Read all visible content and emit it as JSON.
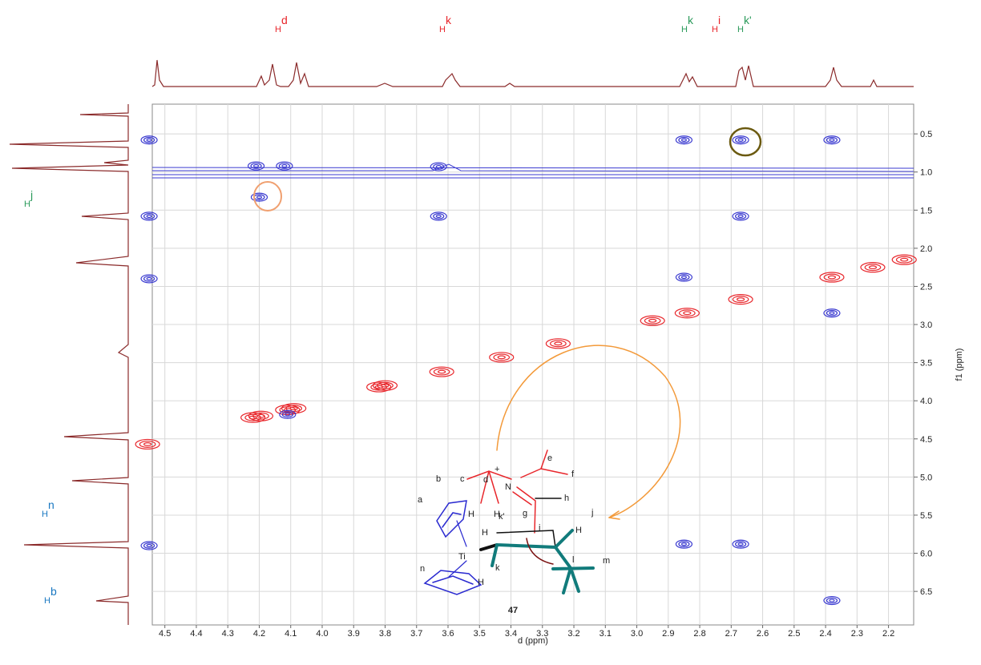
{
  "chart_data": {
    "type": "contour",
    "x_label": "d (ppm)",
    "y_label": "f1 (ppm)",
    "xlim": [
      4.54,
      2.12
    ],
    "ylim": [
      0.11,
      6.94
    ],
    "xticks": [
      4.5,
      4.4,
      4.3,
      4.2,
      4.1,
      {
        "value": 4,
        "label": "4.0"
      },
      3.9,
      3.8,
      3.7,
      3.6,
      3.5,
      3.4,
      3.3,
      3.2,
      3.1,
      {
        "value": 3,
        "label": "3.0"
      },
      2.9,
      2.8,
      2.7,
      2.6,
      2.5,
      2.4,
      2.3,
      2.2
    ],
    "yticks": [
      0.5,
      {
        "value": 1,
        "label": "1.0"
      },
      1.5,
      {
        "value": 2,
        "label": "2.0"
      },
      2.5,
      {
        "value": 3,
        "label": "3.0"
      },
      3.5,
      {
        "value": 4,
        "label": "4.0"
      },
      4.5,
      {
        "value": 5,
        "label": "5.0"
      },
      5.5,
      {
        "value": 6,
        "label": "6.0"
      },
      6.5
    ],
    "grid": true,
    "positive_peaks": {
      "color": "#e8262b",
      "x": [
        4.555,
        4.22,
        4.195,
        4.11,
        4.09,
        3.82,
        3.8,
        3.62,
        3.43,
        3.25,
        2.95,
        2.84,
        2.67,
        2.38,
        2.25,
        2.15
      ],
      "y": [
        4.57,
        4.22,
        4.2,
        4.12,
        4.1,
        3.82,
        3.8,
        3.62,
        3.43,
        3.25,
        2.95,
        2.85,
        2.67,
        2.38,
        2.25,
        2.15
      ]
    },
    "negative_peaks": {
      "color": "#3a3ad0",
      "x": [
        4.2,
        3.63,
        3.63,
        2.85,
        2.67,
        2.67,
        2.85,
        2.38,
        2.38,
        2.85,
        2.67,
        2.38,
        4.11,
        4.12,
        4.21,
        4.55,
        4.55,
        4.55,
        4.55
      ],
      "y": [
        1.33,
        1.58,
        0.93,
        0.58,
        0.58,
        1.58,
        2.38,
        2.85,
        0.58,
        5.88,
        5.88,
        6.62,
        4.18,
        0.92,
        0.92,
        0.58,
        1.58,
        2.4,
        5.9
      ]
    },
    "top_labels": [
      {
        "text": "H",
        "sup": "d",
        "color": "#e8262b"
      },
      {
        "text": "H",
        "sup": "k",
        "color": "#e8262b"
      },
      {
        "text": "H",
        "sup": "k",
        "color": "#2a9a5a"
      },
      {
        "text": "H",
        "sup": "i",
        "color": "#e8262b"
      },
      {
        "text": "H",
        "sup": "k'",
        "color": "#2a9a5a"
      }
    ],
    "left_labels": [
      {
        "text": "H",
        "sup": "j",
        "color": "#2a9a5a"
      },
      {
        "text": "H",
        "sup": "n",
        "color": "#1a78c2"
      },
      {
        "text": "H",
        "sup": "b",
        "color": "#1a78c2"
      }
    ],
    "molecule": {
      "compound": "47",
      "metal": "Ti",
      "nitrogen": "N",
      "charge": "+",
      "hydrogens": [
        "H",
        "H",
        "H",
        "H",
        "H"
      ],
      "hydrogen_labels": [
        "k'",
        "j",
        "k"
      ],
      "atoms": [
        "a",
        "b",
        "c",
        "d",
        "e",
        "f",
        "g",
        "h",
        "i",
        "l",
        "m",
        "n"
      ]
    }
  }
}
